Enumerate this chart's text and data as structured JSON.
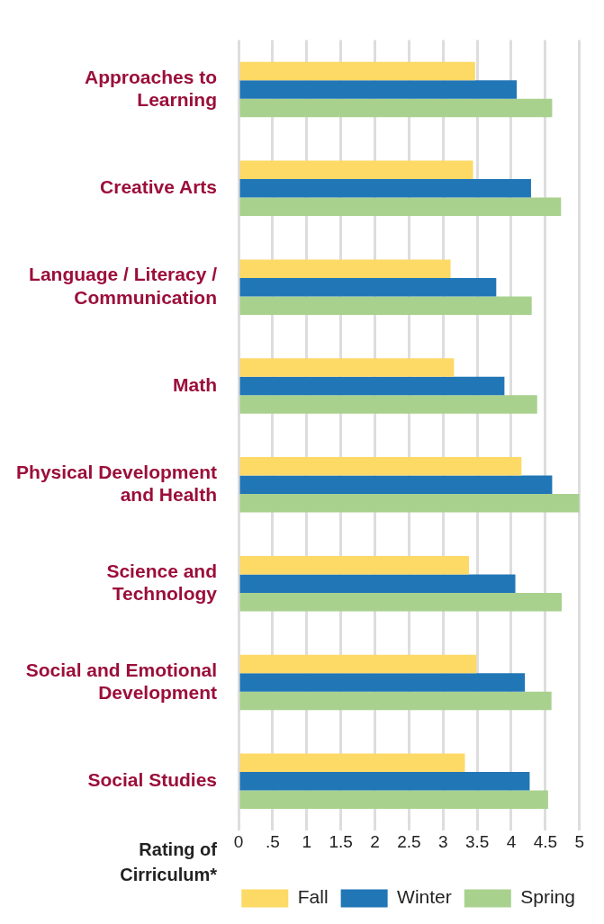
{
  "chart_data": {
    "type": "bar",
    "orientation": "horizontal",
    "xlabel": "Rating of Cirriculum*",
    "categories": [
      "Approaches to Learning",
      "Creative Arts",
      "Language / Literacy / Communication",
      "Math",
      "Physical Development and Health",
      "Science and Technology",
      "Social and Emotional Development",
      "Social Studies"
    ],
    "series": [
      {
        "name": "Fall",
        "color": "#fdd966",
        "values": [
          3.47,
          3.44,
          3.11,
          3.16,
          4.15,
          3.38,
          3.49,
          3.32
        ]
      },
      {
        "name": "Winter",
        "color": "#2176b6",
        "values": [
          4.08,
          4.29,
          3.78,
          3.9,
          4.6,
          4.06,
          4.2,
          4.27
        ]
      },
      {
        "name": "Spring",
        "color": "#a9d18e",
        "values": [
          4.6,
          4.73,
          4.3,
          4.38,
          5,
          4.74,
          4.59,
          4.54
        ]
      }
    ],
    "xlim": [
      0,
      5
    ],
    "xticks": [
      0,
      {
        "value": 0.5,
        "label": ".5"
      },
      1,
      {
        "value": 1.5,
        "label": "1.5"
      },
      2,
      {
        "value": 2.5,
        "label": "2.5"
      },
      3,
      {
        "value": 3.5,
        "label": "3.5"
      },
      4,
      {
        "value": 4.5,
        "label": "4.5"
      },
      5
    ],
    "grid": "x",
    "legend": "bottom right"
  }
}
